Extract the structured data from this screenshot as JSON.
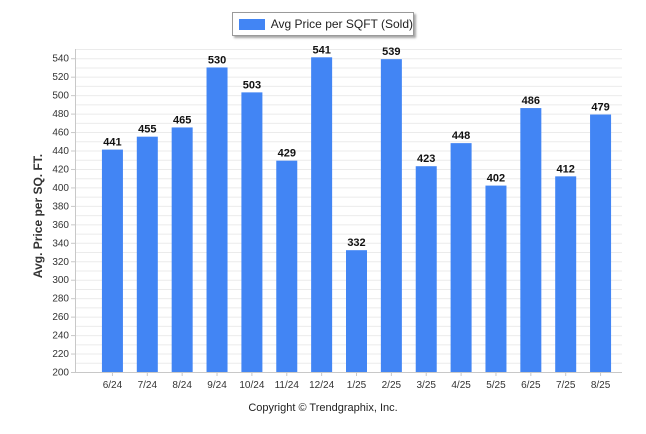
{
  "chart_data": {
    "type": "bar",
    "title": "",
    "xlabel": "",
    "ylabel": "Avg. Price per SQ. FT.",
    "categories": [
      "6/24",
      "7/24",
      "8/24",
      "9/24",
      "10/24",
      "11/24",
      "12/24",
      "1/25",
      "2/25",
      "3/25",
      "4/25",
      "5/25",
      "6/25",
      "7/25",
      "8/25"
    ],
    "series": [
      {
        "name": "Avg Price per SQFT (Sold)",
        "values": [
          441,
          455,
          465,
          530,
          503,
          429,
          541,
          332,
          539,
          423,
          448,
          402,
          486,
          412,
          479
        ],
        "color": "#4285f4"
      }
    ],
    "ylim": [
      200,
      550
    ],
    "yticks": [
      200,
      220,
      240,
      260,
      280,
      300,
      320,
      340,
      360,
      380,
      400,
      420,
      440,
      460,
      480,
      500,
      520,
      540
    ],
    "grid": true,
    "legend": "top-center",
    "data_labels": true
  },
  "footer": {
    "copyright": "Copyright © Trendgraphix, Inc."
  },
  "colors": {
    "bar": "#4285f4",
    "grid": "#ebebeb",
    "axis": "#c8c8c8"
  }
}
